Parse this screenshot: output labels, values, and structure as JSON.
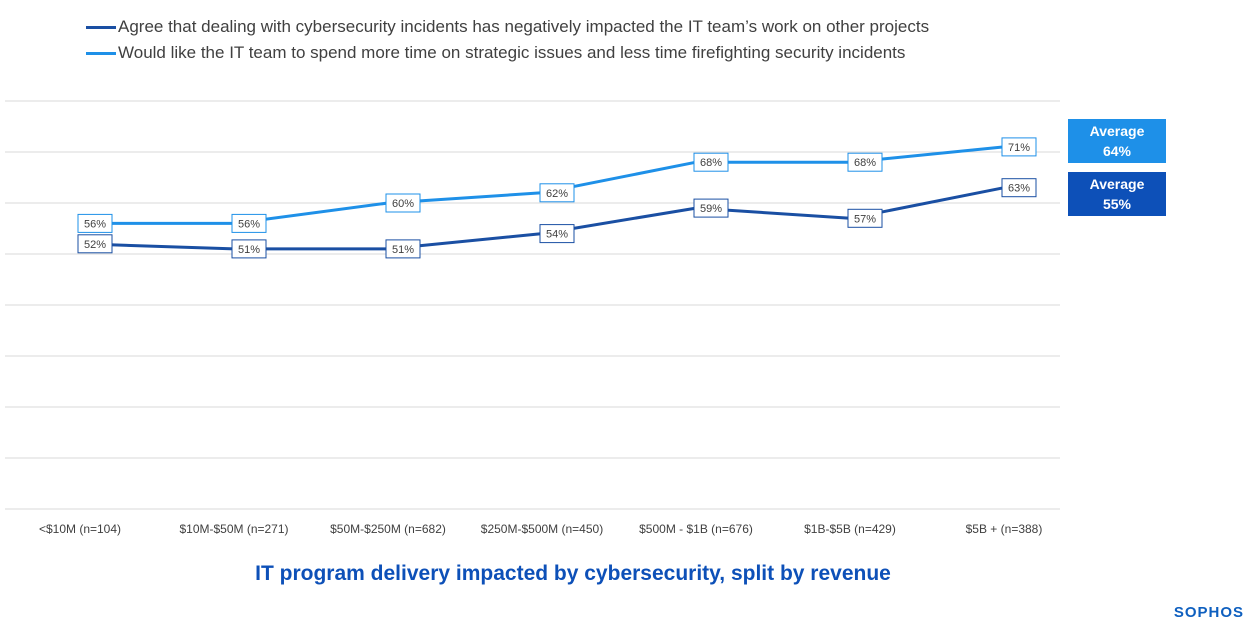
{
  "chart_data": {
    "type": "line",
    "title": "IT program delivery impacted by cybersecurity, split by revenue",
    "categories": [
      "<$10M (n=104)",
      "$10M-$50M (n=271)",
      "$50M-$250M (n=682)",
      "$250M-$500M (n=450)",
      "$500M - $1B (n=676)",
      "$1B-$5B (n=429)",
      "$5B + (n=388)"
    ],
    "series": [
      {
        "name": "Agree that dealing with cybersecurity incidents has negatively impacted the IT team’s work on other projects",
        "values": [
          52,
          51,
          51,
          54,
          59,
          57,
          63
        ],
        "labels": [
          "52%",
          "51%",
          "51%",
          "54%",
          "59%",
          "57%",
          "63%"
        ],
        "color": "#1a4fa3"
      },
      {
        "name": "Would like the IT team to spend more time on strategic issues and less time firefighting security incidents",
        "values": [
          56,
          56,
          60,
          62,
          68,
          68,
          71
        ],
        "labels": [
          "56%",
          "56%",
          "60%",
          "62%",
          "68%",
          "68%",
          "71%"
        ],
        "color": "#1e90e8"
      }
    ],
    "ylim": [
      0,
      80
    ],
    "grid_step": 10,
    "grid": true,
    "legend_position": "top-left",
    "xlabel": "",
    "ylabel": ""
  },
  "averages": [
    {
      "label": "Average",
      "value": "64%",
      "color": "#1e90e8"
    },
    {
      "label": "Average",
      "value": "55%",
      "color": "#0d50b8"
    }
  ],
  "brand": {
    "name": "SOPHOS",
    "color": "#0e5fbf"
  },
  "title_color": "#0d50b8"
}
